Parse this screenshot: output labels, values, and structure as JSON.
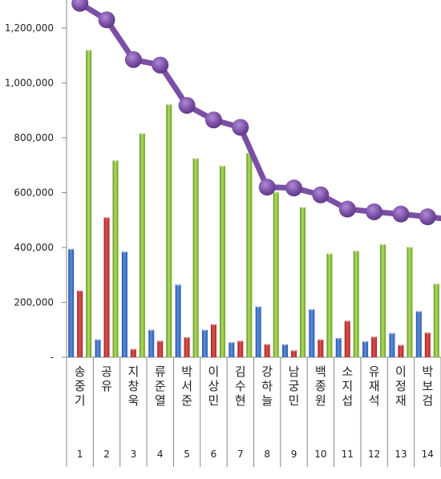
{
  "chart_data": {
    "type": "bar",
    "title": "",
    "xlabel": "",
    "ylabel": "",
    "ylim": [
      0,
      1300000
    ],
    "grid": false,
    "legend": "none",
    "y_ticks": [
      "-",
      "200,000",
      "400,000",
      "600,000",
      "800,000",
      "1,000,000",
      "1,200,000"
    ],
    "y_tick_values": [
      0,
      200000,
      400000,
      600000,
      800000,
      1000000,
      1200000
    ],
    "categories": [
      "송중기",
      "공유",
      "지창욱",
      "류준열",
      "박서준",
      "이상민",
      "김수현",
      "강하늘",
      "남궁민",
      "백종원",
      "소지섭",
      "유재석",
      "이정재",
      "박보검"
    ],
    "ranks": [
      "1",
      "2",
      "3",
      "4",
      "5",
      "6",
      "7",
      "8",
      "9",
      "10",
      "11",
      "12",
      "13",
      "14"
    ],
    "series": [
      {
        "values": [
          395000,
          65000,
          385000,
          100000,
          265000,
          100000,
          55000,
          185000,
          47000,
          175000,
          70000,
          58000,
          88000,
          168000
        ],
        "color": "#3f74c8",
        "kind": "bar"
      },
      {
        "values": [
          243000,
          510000,
          30000,
          60000,
          73000,
          120000,
          60000,
          48000,
          25000,
          65000,
          133000,
          75000,
          45000,
          90000
        ],
        "color": "#c83a3a",
        "kind": "bar"
      },
      {
        "values": [
          1120000,
          718000,
          816000,
          922000,
          725000,
          698000,
          745000,
          602000,
          547000,
          378000,
          388000,
          412000,
          402000,
          268000
        ],
        "color": "#8dc63f",
        "kind": "bar"
      },
      {
        "values": [
          1290000,
          1230000,
          1085000,
          1065000,
          918000,
          865000,
          838000,
          620000,
          617000,
          592000,
          540000,
          530000,
          522000,
          512000
        ],
        "color": "#7b4fa6",
        "kind": "line"
      }
    ]
  }
}
